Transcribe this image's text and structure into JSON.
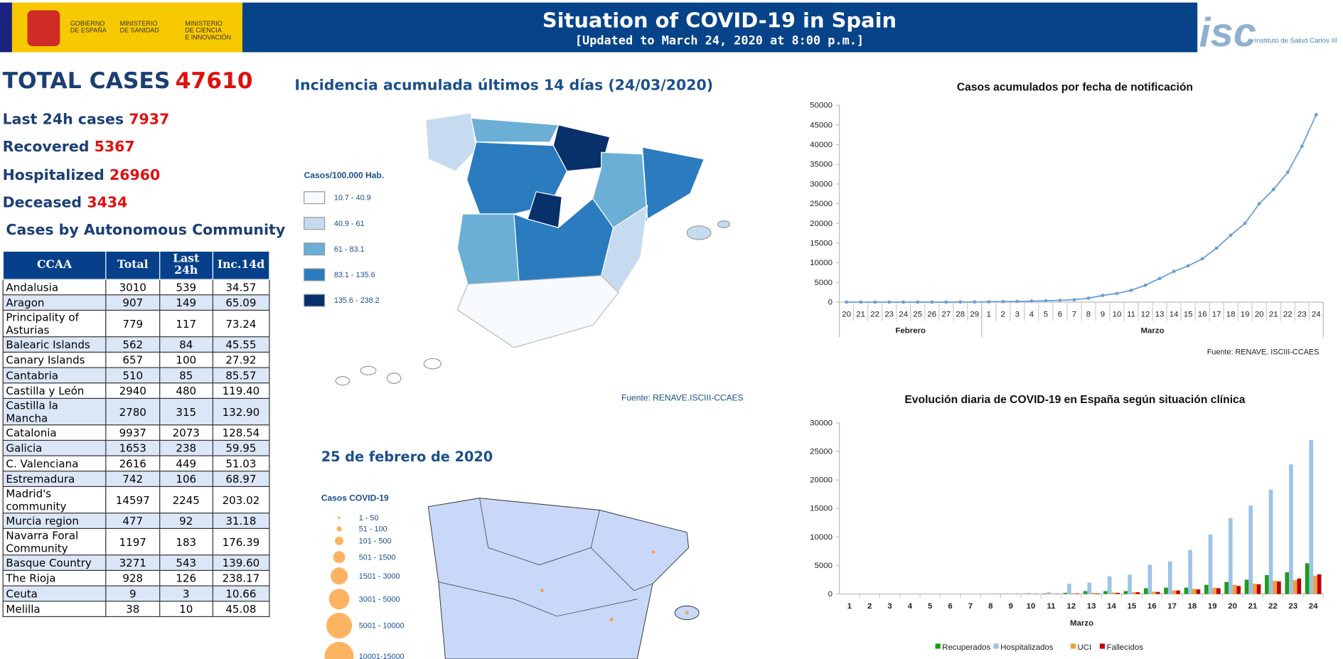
{
  "header": {
    "gov_lines": [
      "GOBIERNO",
      "DE ESPAÑA"
    ],
    "min1_lines": [
      "MINISTERIO",
      "DE SANIDAD"
    ],
    "min2_lines": [
      "MINISTERIO",
      "DE CIENCIA",
      "E INNOVACIÓN"
    ],
    "title": "Situation of COVID-19 in Spain",
    "subtitle": "[Updated to March 24, 2020 at 8:00 p.m.]",
    "logo_text": "isc",
    "institute": "Instituto de Salud Carlos III"
  },
  "stats": {
    "total_label": "TOTAL CASES",
    "total_value": 47610,
    "items": [
      {
        "label": "Last 24h cases",
        "value": 7937
      },
      {
        "label": "Recovered",
        "value": 5367
      },
      {
        "label": "Hospitalized",
        "value": 26960
      },
      {
        "label": "Deceased",
        "value": 3434
      }
    ],
    "table_title": "Cases by Autonomous Community"
  },
  "table": {
    "columns": [
      "CCAA",
      "Total",
      "Last 24h",
      "Inc.14d"
    ],
    "rows": [
      [
        "Andalusia",
        3010,
        539,
        "34.57"
      ],
      [
        "Aragon",
        907,
        149,
        "65.09"
      ],
      [
        "Principality of Asturias",
        779,
        117,
        "73.24"
      ],
      [
        "Balearic Islands",
        562,
        84,
        "45.55"
      ],
      [
        "Canary Islands",
        657,
        100,
        "27.92"
      ],
      [
        "Cantabria",
        510,
        85,
        "85.57"
      ],
      [
        "Castilla y León",
        2940,
        480,
        "119.40"
      ],
      [
        "Castilla la Mancha",
        2780,
        315,
        "132.90"
      ],
      [
        "Catalonia",
        9937,
        2073,
        "128.54"
      ],
      [
        "Galicia",
        1653,
        238,
        "59.95"
      ],
      [
        "C. Valenciana",
        2616,
        449,
        "51.03"
      ],
      [
        "Estremadura",
        742,
        106,
        "68.97"
      ],
      [
        "Madrid's community",
        14597,
        2245,
        "203.02"
      ],
      [
        "Murcia region",
        477,
        92,
        "31.18"
      ],
      [
        "Navarra Foral Community",
        1197,
        183,
        "176.39"
      ],
      [
        "Basque Country",
        3271,
        543,
        "139.60"
      ],
      [
        "The Rioja",
        928,
        126,
        "238.17"
      ],
      [
        "Ceuta",
        9,
        3,
        "10.66"
      ],
      [
        "Melilla",
        38,
        10,
        "45.08"
      ]
    ]
  },
  "map1": {
    "title": "Incidencia acumulada últimos 14 días (24/03/2020)",
    "legend_title": "Casos/100.000 Hab.",
    "legend": [
      {
        "label": "10.7 - 40.9",
        "color": "#f7fbff"
      },
      {
        "label": "40.9 - 61",
        "color": "#c6dbef"
      },
      {
        "label": "61 - 83.1",
        "color": "#6baed6"
      },
      {
        "label": "83.1 - 135.6",
        "color": "#2b7bbf"
      },
      {
        "label": "135.6 - 238.2",
        "color": "#08306b"
      }
    ],
    "source": "Fuente: RENAVE.ISCIII-CCAES"
  },
  "map2": {
    "title": "25 de febrero de 2020",
    "legend_title": "Casos COVID-19",
    "legend": [
      "1 - 50",
      "51 - 100",
      "101 - 500",
      "501 - 1500",
      "1501 - 3000",
      "3001 - 5000",
      "5001 - 10000",
      "10001-15000"
    ]
  },
  "chart_data": [
    {
      "type": "line",
      "title": "Casos acumulados por fecha de notificación",
      "categories": [
        "20",
        "21",
        "22",
        "23",
        "24",
        "25",
        "26",
        "27",
        "28",
        "29",
        "1",
        "2",
        "3",
        "4",
        "5",
        "6",
        "7",
        "8",
        "9",
        "10",
        "11",
        "12",
        "13",
        "14",
        "15",
        "16",
        "17",
        "18",
        "19",
        "20",
        "21",
        "22",
        "23",
        "24"
      ],
      "groups": [
        "Febrero",
        "Marzo"
      ],
      "series": [
        {
          "name": "Casos",
          "color": "#6a9fd4",
          "values": [
            0,
            0,
            0,
            0,
            2,
            4,
            7,
            12,
            25,
            32,
            80,
            120,
            180,
            250,
            350,
            450,
            600,
            1000,
            1700,
            2200,
            3000,
            4300,
            6000,
            7800,
            9200,
            11000,
            13700,
            17000,
            20000,
            25000,
            28600,
            33000,
            39600,
            47610
          ]
        }
      ],
      "ylim": [
        0,
        50000
      ],
      "yticks": [
        0,
        5000,
        10000,
        15000,
        20000,
        25000,
        30000,
        35000,
        40000,
        45000,
        50000
      ],
      "source": "Fuente: RENAVE. ISCIII-CCAES"
    },
    {
      "type": "bar",
      "title": "Evolución diaria de COVID-19 en España según situación clínica",
      "x_label": "Marzo",
      "categories": [
        "1",
        "2",
        "3",
        "4",
        "5",
        "6",
        "7",
        "8",
        "9",
        "10",
        "11",
        "12",
        "13",
        "14",
        "15",
        "16",
        "17",
        "18",
        "19",
        "20",
        "21",
        "22",
        "23",
        "24"
      ],
      "series": [
        {
          "name": "Recuperados",
          "color": "#1e9c1e",
          "values": [
            0,
            0,
            0,
            0,
            0,
            0,
            0,
            10,
            20,
            30,
            100,
            200,
            500,
            500,
            500,
            1000,
            1100,
            1100,
            1600,
            2100,
            2500,
            3300,
            3800,
            5367
          ]
        },
        {
          "name": "Hospitalizados",
          "color": "#9dc3e6",
          "values": [
            10,
            10,
            20,
            20,
            30,
            40,
            50,
            60,
            100,
            200,
            300,
            1800,
            2000,
            3100,
            3400,
            5100,
            5700,
            7700,
            10400,
            13300,
            15500,
            18300,
            22700,
            26960
          ]
        },
        {
          "name": "UCI",
          "color": "#f0a040",
          "values": [
            0,
            0,
            0,
            0,
            0,
            0,
            0,
            10,
            20,
            40,
            60,
            100,
            200,
            250,
            300,
            400,
            600,
            900,
            1100,
            1600,
            1800,
            2300,
            2400,
            3200
          ]
        },
        {
          "name": "Fallecidos",
          "color": "#c00000",
          "values": [
            0,
            0,
            0,
            0,
            0,
            0,
            0,
            10,
            20,
            30,
            50,
            80,
            100,
            200,
            300,
            350,
            600,
            800,
            1000,
            1400,
            1700,
            2200,
            2700,
            3434
          ]
        }
      ],
      "ylim": [
        0,
        30000
      ],
      "yticks": [
        0,
        5000,
        10000,
        15000,
        20000,
        25000,
        30000
      ]
    }
  ]
}
